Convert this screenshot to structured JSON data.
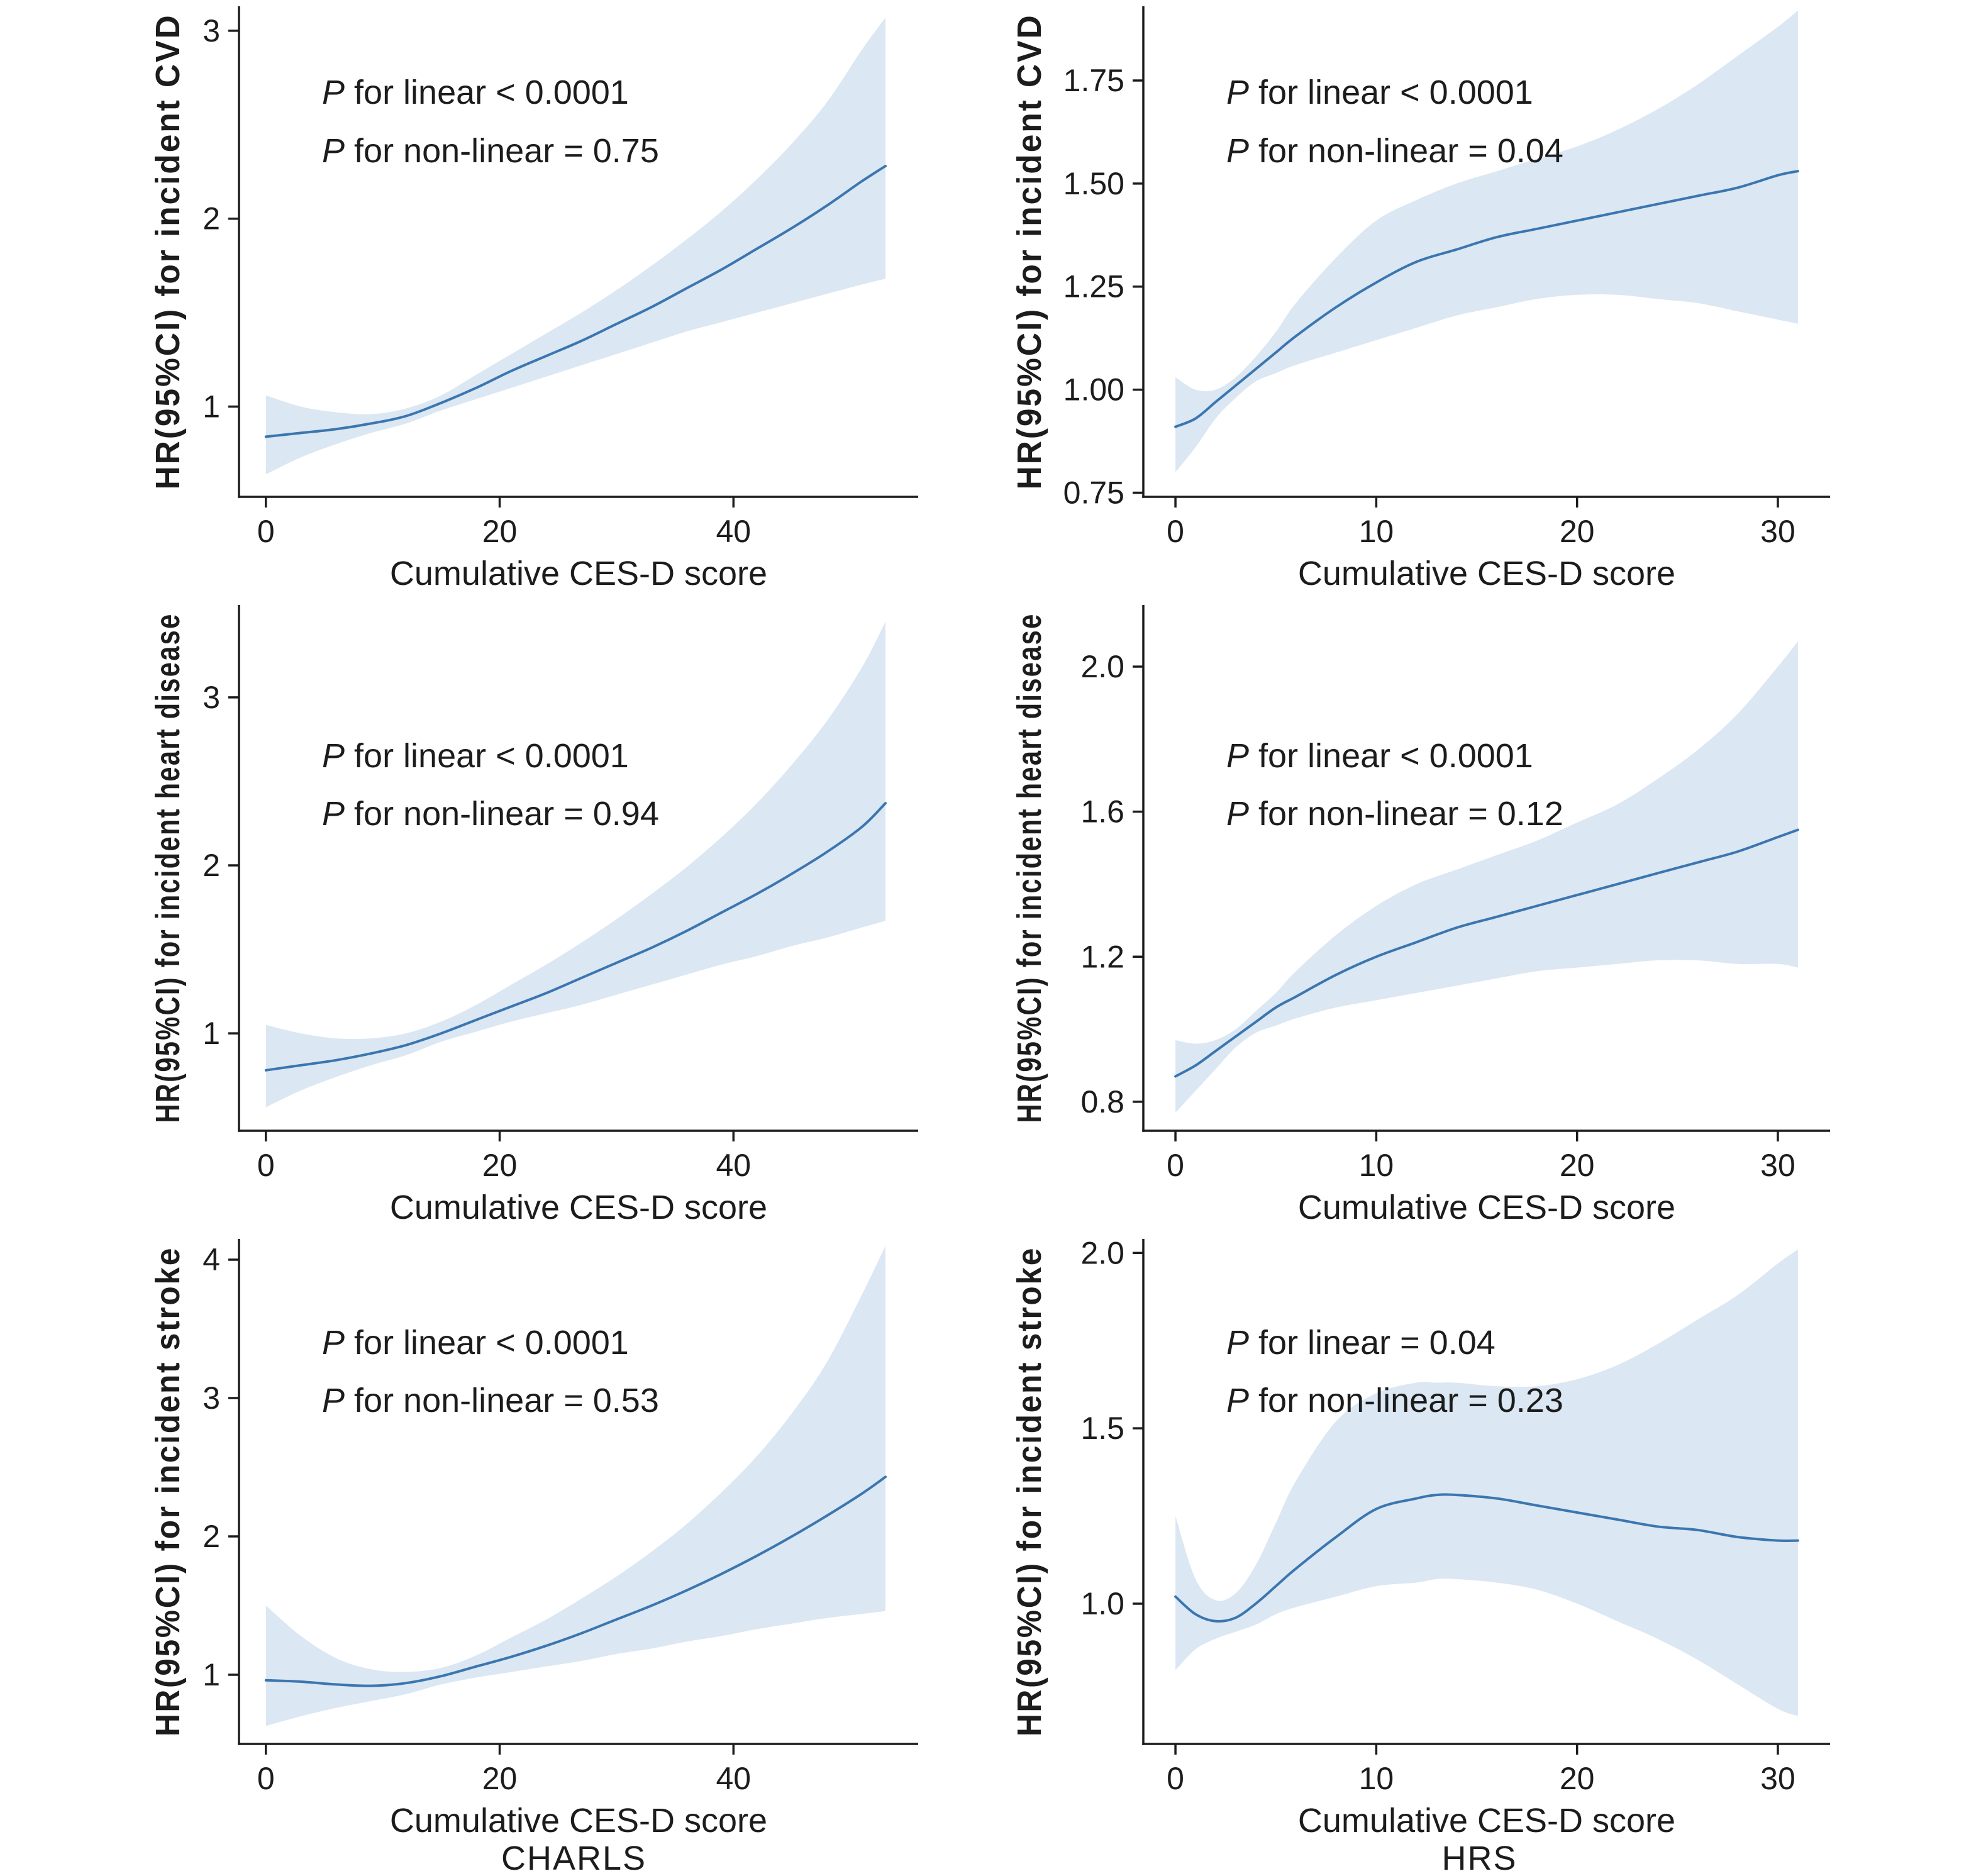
{
  "figure": {
    "cohorts": [
      "CHARLS",
      "HRS"
    ],
    "xlabel": "Cumulative CES-D score",
    "colors": {
      "line": "#3b76b0",
      "band": "#dbe7f2",
      "axis": "#1c1c1c",
      "text": "#1c1c1c",
      "background": "#ffffff"
    }
  },
  "chart_data": [
    {
      "type": "line",
      "cohort": "CHARLS",
      "outcome": "incident CVD",
      "ylabel": "HR(95%CI) for incident CVD",
      "xlabel": "Cumulative CES-D score",
      "annotations": [
        "P for linear < 0.0001",
        "P for non-linear = 0.75"
      ],
      "xlim": [
        -2.3,
        55.8
      ],
      "ylim": [
        0.52,
        3.13
      ],
      "xticks": [
        0,
        20,
        40
      ],
      "xtick_labels": [
        "0",
        "20",
        "40"
      ],
      "yticks": [
        1,
        2,
        3
      ],
      "ytick_labels": [
        "1",
        "2",
        "3"
      ],
      "x": [
        0,
        3,
        6,
        9,
        12,
        15,
        18,
        21,
        24,
        27,
        30,
        33,
        36,
        39,
        42,
        45,
        48,
        51,
        53
      ],
      "hr": [
        0.84,
        0.86,
        0.88,
        0.91,
        0.95,
        1.02,
        1.1,
        1.19,
        1.27,
        1.35,
        1.44,
        1.53,
        1.63,
        1.73,
        1.84,
        1.95,
        2.07,
        2.2,
        2.28
      ],
      "ci_upper": [
        1.06,
        1.0,
        0.97,
        0.96,
        0.99,
        1.06,
        1.17,
        1.28,
        1.39,
        1.5,
        1.62,
        1.75,
        1.89,
        2.04,
        2.21,
        2.4,
        2.62,
        2.9,
        3.07
      ],
      "ci_lower": [
        0.64,
        0.73,
        0.8,
        0.86,
        0.91,
        0.98,
        1.04,
        1.1,
        1.16,
        1.22,
        1.28,
        1.34,
        1.4,
        1.45,
        1.5,
        1.55,
        1.6,
        1.65,
        1.68
      ]
    },
    {
      "type": "line",
      "cohort": "HRS",
      "outcome": "incident CVD",
      "ylabel": "HR(95%CI) for incident CVD",
      "xlabel": "Cumulative CES-D score",
      "annotations": [
        "P for linear < 0.0001",
        "P for non-linear = 0.04"
      ],
      "xlim": [
        -1.6,
        32.6
      ],
      "ylim": [
        0.74,
        1.93
      ],
      "xticks": [
        0,
        10,
        20,
        30
      ],
      "xtick_labels": [
        "0",
        "10",
        "20",
        "30"
      ],
      "yticks": [
        0.75,
        1.0,
        1.25,
        1.5,
        1.75
      ],
      "ytick_labels": [
        "0.75",
        "1.00",
        "1.25",
        "1.50",
        "1.75"
      ],
      "x": [
        0,
        1,
        2,
        3,
        4,
        5,
        6,
        8,
        10,
        12,
        14,
        16,
        18,
        20,
        22,
        24,
        26,
        28,
        30,
        31
      ],
      "hr": [
        0.91,
        0.93,
        0.97,
        1.01,
        1.05,
        1.09,
        1.13,
        1.2,
        1.26,
        1.31,
        1.34,
        1.37,
        1.39,
        1.41,
        1.43,
        1.45,
        1.47,
        1.49,
        1.52,
        1.53
      ],
      "ci_upper": [
        1.03,
        1.0,
        1.0,
        1.03,
        1.08,
        1.14,
        1.21,
        1.32,
        1.41,
        1.46,
        1.5,
        1.53,
        1.56,
        1.59,
        1.63,
        1.68,
        1.74,
        1.81,
        1.88,
        1.92
      ],
      "ci_lower": [
        0.8,
        0.86,
        0.93,
        0.98,
        1.02,
        1.04,
        1.06,
        1.09,
        1.12,
        1.15,
        1.18,
        1.2,
        1.22,
        1.23,
        1.23,
        1.22,
        1.21,
        1.19,
        1.17,
        1.16
      ]
    },
    {
      "type": "line",
      "cohort": "CHARLS",
      "outcome": "incident heart disease",
      "ylabel": "HR(95%CI) for incident heart disease",
      "xlabel": "Cumulative CES-D score",
      "annotations": [
        "P for linear < 0.0001",
        "P for non-linear = 0.94"
      ],
      "xlim": [
        -2.3,
        55.8
      ],
      "ylim": [
        0.42,
        3.55
      ],
      "xticks": [
        0,
        20,
        40
      ],
      "xtick_labels": [
        "0",
        "20",
        "40"
      ],
      "yticks": [
        1,
        2,
        3
      ],
      "ytick_labels": [
        "1",
        "2",
        "3"
      ],
      "x": [
        0,
        3,
        6,
        9,
        12,
        15,
        18,
        21,
        24,
        27,
        30,
        33,
        36,
        39,
        42,
        45,
        48,
        51,
        53
      ],
      "hr": [
        0.78,
        0.81,
        0.84,
        0.88,
        0.93,
        1.0,
        1.08,
        1.16,
        1.24,
        1.33,
        1.42,
        1.51,
        1.61,
        1.72,
        1.83,
        1.95,
        2.08,
        2.23,
        2.37
      ],
      "ci_upper": [
        1.05,
        1.0,
        0.97,
        0.97,
        1.0,
        1.07,
        1.17,
        1.29,
        1.41,
        1.54,
        1.68,
        1.83,
        1.99,
        2.17,
        2.37,
        2.6,
        2.86,
        3.18,
        3.45
      ],
      "ci_lower": [
        0.56,
        0.66,
        0.74,
        0.81,
        0.87,
        0.95,
        1.01,
        1.07,
        1.12,
        1.17,
        1.23,
        1.29,
        1.35,
        1.41,
        1.46,
        1.52,
        1.57,
        1.63,
        1.67
      ]
    },
    {
      "type": "line",
      "cohort": "HRS",
      "outcome": "incident heart disease",
      "ylabel": "HR(95%CI) for incident heart disease",
      "xlabel": "Cumulative CES-D score",
      "annotations": [
        "P for linear < 0.0001",
        "P for non-linear = 0.12"
      ],
      "xlim": [
        -1.6,
        32.6
      ],
      "ylim": [
        0.72,
        2.17
      ],
      "xticks": [
        0,
        10,
        20,
        30
      ],
      "xtick_labels": [
        "0",
        "10",
        "20",
        "30"
      ],
      "yticks": [
        0.8,
        1.2,
        1.6,
        2.0
      ],
      "ytick_labels": [
        "0.8",
        "1.2",
        "1.6",
        "2.0"
      ],
      "x": [
        0,
        1,
        2,
        3,
        4,
        5,
        6,
        8,
        10,
        12,
        14,
        16,
        18,
        20,
        22,
        24,
        26,
        28,
        30,
        31
      ],
      "hr": [
        0.87,
        0.9,
        0.94,
        0.98,
        1.02,
        1.06,
        1.09,
        1.15,
        1.2,
        1.24,
        1.28,
        1.31,
        1.34,
        1.37,
        1.4,
        1.43,
        1.46,
        1.49,
        1.53,
        1.55
      ],
      "ci_upper": [
        0.97,
        0.96,
        0.97,
        1.0,
        1.05,
        1.1,
        1.16,
        1.26,
        1.34,
        1.4,
        1.44,
        1.48,
        1.52,
        1.57,
        1.62,
        1.69,
        1.77,
        1.87,
        2.0,
        2.07
      ],
      "ci_lower": [
        0.77,
        0.83,
        0.89,
        0.95,
        0.99,
        1.01,
        1.03,
        1.06,
        1.08,
        1.1,
        1.12,
        1.14,
        1.16,
        1.17,
        1.18,
        1.19,
        1.19,
        1.18,
        1.18,
        1.17
      ]
    },
    {
      "type": "line",
      "cohort": "CHARLS",
      "outcome": "incident stroke",
      "ylabel": "HR(95%CI) for incident stroke",
      "xlabel": "Cumulative CES-D score",
      "annotations": [
        "P for linear < 0.0001",
        "P for non-linear = 0.53"
      ],
      "xlim": [
        -2.3,
        55.8
      ],
      "ylim": [
        0.5,
        4.15
      ],
      "xticks": [
        0,
        20,
        40
      ],
      "xtick_labels": [
        "0",
        "20",
        "40"
      ],
      "yticks": [
        1,
        2,
        3,
        4
      ],
      "ytick_labels": [
        "1",
        "2",
        "3",
        "4"
      ],
      "x": [
        0,
        3,
        6,
        9,
        12,
        15,
        18,
        21,
        24,
        27,
        30,
        33,
        36,
        39,
        42,
        45,
        48,
        51,
        53
      ],
      "hr": [
        0.96,
        0.95,
        0.93,
        0.92,
        0.94,
        0.99,
        1.06,
        1.13,
        1.21,
        1.3,
        1.4,
        1.5,
        1.61,
        1.73,
        1.86,
        2.0,
        2.15,
        2.31,
        2.43
      ],
      "ci_upper": [
        1.5,
        1.28,
        1.12,
        1.04,
        1.02,
        1.05,
        1.14,
        1.27,
        1.4,
        1.55,
        1.71,
        1.89,
        2.09,
        2.32,
        2.58,
        2.89,
        3.26,
        3.75,
        4.1
      ],
      "ci_lower": [
        0.63,
        0.7,
        0.76,
        0.81,
        0.86,
        0.93,
        0.98,
        1.02,
        1.06,
        1.1,
        1.15,
        1.19,
        1.24,
        1.28,
        1.33,
        1.37,
        1.41,
        1.44,
        1.46
      ]
    },
    {
      "type": "line",
      "cohort": "HRS",
      "outcome": "incident stroke",
      "ylabel": "HR(95%CI) for incident stroke",
      "xlabel": "Cumulative CES-D score",
      "annotations": [
        "P for linear = 0.04",
        "P for non-linear = 0.23"
      ],
      "xlim": [
        -1.6,
        32.6
      ],
      "ylim": [
        0.6,
        2.04
      ],
      "xticks": [
        0,
        10,
        20,
        30
      ],
      "xtick_labels": [
        "0",
        "10",
        "20",
        "30"
      ],
      "yticks": [
        1.0,
        1.5,
        2.0
      ],
      "ytick_labels": [
        "1.0",
        "1.5",
        "2.0"
      ],
      "x": [
        0,
        1,
        2,
        3,
        4,
        5,
        6,
        8,
        10,
        12,
        13,
        14,
        16,
        18,
        20,
        22,
        24,
        26,
        28,
        30,
        31
      ],
      "hr": [
        1.02,
        0.97,
        0.95,
        0.96,
        1.0,
        1.05,
        1.1,
        1.19,
        1.27,
        1.3,
        1.31,
        1.31,
        1.3,
        1.28,
        1.26,
        1.24,
        1.22,
        1.21,
        1.19,
        1.18,
        1.18
      ],
      "ci_upper": [
        1.25,
        1.07,
        1.01,
        1.03,
        1.11,
        1.23,
        1.35,
        1.52,
        1.6,
        1.63,
        1.63,
        1.63,
        1.62,
        1.62,
        1.64,
        1.68,
        1.74,
        1.81,
        1.88,
        1.97,
        2.01
      ],
      "ci_lower": [
        0.81,
        0.87,
        0.9,
        0.92,
        0.94,
        0.97,
        0.99,
        1.02,
        1.05,
        1.06,
        1.07,
        1.07,
        1.06,
        1.04,
        1.0,
        0.95,
        0.9,
        0.84,
        0.77,
        0.7,
        0.68
      ]
    }
  ]
}
